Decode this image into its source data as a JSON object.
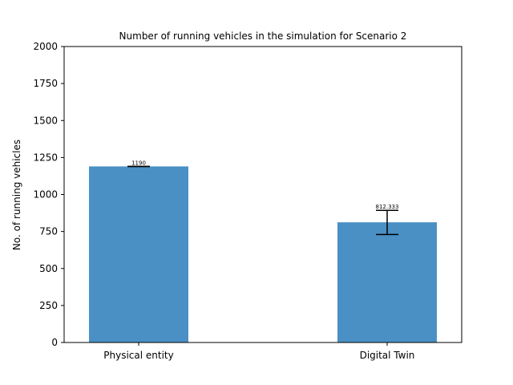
{
  "chart_data": {
    "type": "bar",
    "title": "Number of running vehicles in the simulation for Scenario 2",
    "xlabel": "",
    "ylabel": "No. of running vehicles",
    "categories": [
      "Physical entity",
      "Digital Twin"
    ],
    "values": [
      1190,
      812.333
    ],
    "value_labels": [
      "1190",
      "812.333"
    ],
    "error_low": [
      1190,
      730
    ],
    "error_high": [
      1190,
      893
    ],
    "ylim": [
      0,
      2000
    ],
    "yticks": [
      0,
      250,
      500,
      750,
      1000,
      1250,
      1500,
      1750,
      2000
    ],
    "ytick_labels": [
      "0",
      "250",
      "500",
      "750",
      "1000",
      "1250",
      "1500",
      "1750",
      "2000"
    ],
    "bar_color": "#4a90c4",
    "grid": false,
    "legend": "none"
  }
}
